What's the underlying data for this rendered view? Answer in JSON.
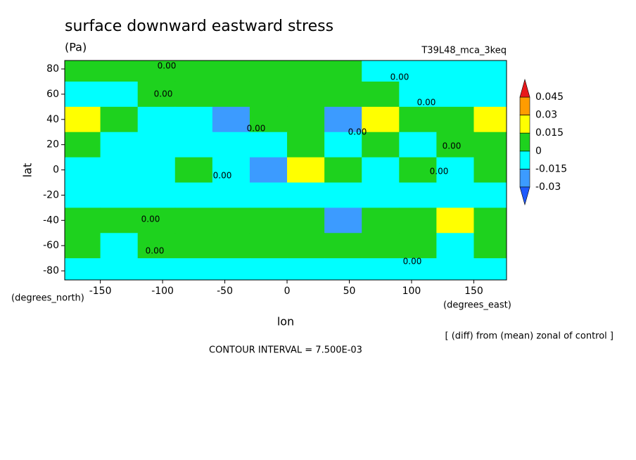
{
  "chart_data": {
    "type": "contour",
    "title": "surface downward eastward stress",
    "units": "(Pa)",
    "run_label": "T39L48_mca_3keq",
    "xlabel": "lon",
    "ylabel": "lat",
    "xunits": "(degrees_east)",
    "yunits": "(degrees_north)",
    "note": "[ (diff) from (mean) zonal of control ]",
    "contour_interval": "CONTOUR INTERVAL = 7.500E-03",
    "contour_labels": [
      "0.00",
      "0.00",
      "0.00",
      "0.00",
      "0.00",
      "0.00",
      "0.00",
      "0.00",
      "0.00",
      "0.00",
      "0.00",
      "0.00"
    ],
    "xlim": [
      -178.6,
      176.3
    ],
    "ylim": [
      -87.2,
      86.7
    ],
    "xticks": [
      -150,
      -100,
      -50,
      0,
      50,
      100,
      150
    ],
    "yticks": [
      -80,
      -60,
      -40,
      -20,
      0,
      20,
      40,
      60,
      80
    ],
    "levels": [
      -0.03,
      -0.015,
      0,
      0.015,
      0.03,
      0.045
    ],
    "colors": [
      "#1e5aff",
      "#3c9bff",
      "#00ffff",
      "#1ed21e",
      "#ffff00",
      "#ff9c00",
      "#e8191b"
    ],
    "x": [
      -165,
      -135,
      -105,
      -75,
      -45,
      -15,
      15,
      45,
      75,
      105,
      135,
      165
    ],
    "y": [
      80,
      60,
      40,
      20,
      0,
      -20,
      -40,
      -60,
      -80
    ],
    "z": [
      [
        0.003,
        0.003,
        0.003,
        0.003,
        0.003,
        0.003,
        0.003,
        0.003,
        -0.003,
        -0.003,
        -0.003,
        -0.003
      ],
      [
        -0.005,
        -0.008,
        0.004,
        0.005,
        0.004,
        0.005,
        0.004,
        0.004,
        0.004,
        -0.003,
        -0.005,
        -0.003
      ],
      [
        0.02,
        0.008,
        -0.005,
        -0.005,
        -0.018,
        0.005,
        0.005,
        -0.018,
        0.02,
        0.005,
        0.008,
        0.02
      ],
      [
        0.004,
        -0.005,
        -0.005,
        -0.005,
        -0.005,
        -0.005,
        0.008,
        -0.005,
        0.004,
        -0.005,
        0.003,
        0.004
      ],
      [
        -0.005,
        -0.005,
        -0.005,
        0.005,
        -0.005,
        -0.016,
        0.02,
        0.004,
        -0.005,
        0.004,
        -0.005,
        0.004
      ],
      [
        -0.005,
        -0.005,
        -0.005,
        -0.005,
        -0.005,
        -0.005,
        -0.005,
        -0.005,
        -0.005,
        -0.005,
        -0.005,
        -0.005
      ],
      [
        0.005,
        0.005,
        0.008,
        0.005,
        0.008,
        0.005,
        0.004,
        -0.018,
        0.005,
        0.008,
        0.025,
        0.008
      ],
      [
        0.003,
        -0.005,
        0.004,
        0.004,
        0.005,
        0.005,
        0.008,
        0.005,
        0.005,
        0.004,
        -0.005,
        0.004
      ],
      [
        -0.003,
        -0.003,
        -0.003,
        -0.003,
        -0.003,
        -0.003,
        -0.003,
        -0.003,
        -0.003,
        -0.003,
        -0.003,
        -0.003
      ]
    ]
  }
}
